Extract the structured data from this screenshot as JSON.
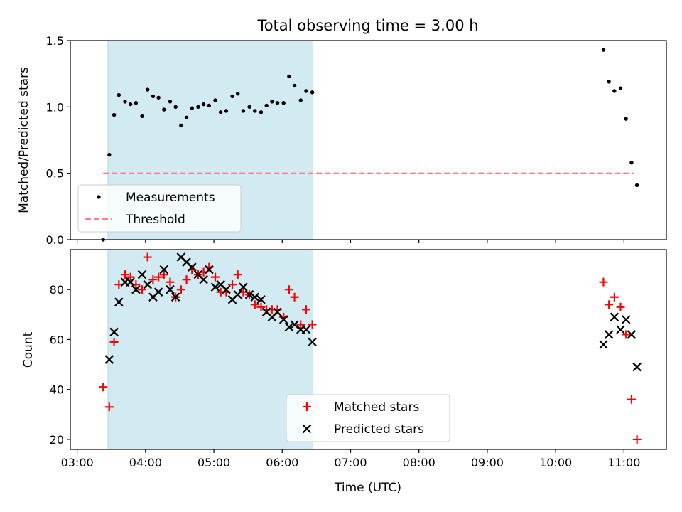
{
  "chart_data": {
    "title": "Total observing time = 3.00 h",
    "xlabel": "Time (UTC)",
    "x_unit": "hours UTC",
    "xlim": [
      2.9,
      11.62
    ],
    "x_ticks": [
      {
        "value": 3,
        "label": "03:00"
      },
      {
        "value": 4,
        "label": "04:00"
      },
      {
        "value": 5,
        "label": "05:00"
      },
      {
        "value": 6,
        "label": "06:00"
      },
      {
        "value": 7,
        "label": "07:00"
      },
      {
        "value": 8,
        "label": "08:00"
      },
      {
        "value": 9,
        "label": "09:00"
      },
      {
        "value": 10,
        "label": "10:00"
      },
      {
        "value": 11,
        "label": "11:00"
      }
    ],
    "shaded_interval": {
      "start": 3.45,
      "end": 6.45,
      "color": "#add8e6"
    },
    "panels": [
      {
        "id": "ratio",
        "type": "scatter",
        "ylabel": "Matched/Predicted stars",
        "ylim": [
          0,
          1.5
        ],
        "y_ticks": [
          {
            "value": 0.0,
            "label": "0.0"
          },
          {
            "value": 0.5,
            "label": "0.5"
          },
          {
            "value": 1.0,
            "label": "1.0"
          },
          {
            "value": 1.5,
            "label": "1.5"
          }
        ],
        "legend_position": "lower-left",
        "series": [
          {
            "name": "Measurements",
            "marker": "dot",
            "color": "#000000",
            "points": [
              [
                3.38,
                0.0
              ],
              [
                3.47,
                0.64
              ],
              [
                3.54,
                0.94
              ],
              [
                3.61,
                1.09
              ],
              [
                3.7,
                1.04
              ],
              [
                3.78,
                1.02
              ],
              [
                3.86,
                1.03
              ],
              [
                3.95,
                0.93
              ],
              [
                4.03,
                1.13
              ],
              [
                4.11,
                1.08
              ],
              [
                4.19,
                1.07
              ],
              [
                4.27,
                0.98
              ],
              [
                4.36,
                1.04
              ],
              [
                4.44,
                1.0
              ],
              [
                4.52,
                0.86
              ],
              [
                4.6,
                0.92
              ],
              [
                4.68,
                0.99
              ],
              [
                4.77,
                1.0
              ],
              [
                4.85,
                1.02
              ],
              [
                4.93,
                1.01
              ],
              [
                5.02,
                1.05
              ],
              [
                5.1,
                0.96
              ],
              [
                5.18,
                0.97
              ],
              [
                5.27,
                1.08
              ],
              [
                5.35,
                1.1
              ],
              [
                5.43,
                0.97
              ],
              [
                5.52,
                1.0
              ],
              [
                5.6,
                0.97
              ],
              [
                5.69,
                0.96
              ],
              [
                5.77,
                1.01
              ],
              [
                5.85,
                1.04
              ],
              [
                5.93,
                1.03
              ],
              [
                6.02,
                1.03
              ],
              [
                6.1,
                1.23
              ],
              [
                6.18,
                1.16
              ],
              [
                6.27,
                1.05
              ],
              [
                6.35,
                1.12
              ],
              [
                6.44,
                1.11
              ],
              [
                10.7,
                1.43
              ],
              [
                10.78,
                1.19
              ],
              [
                10.86,
                1.12
              ],
              [
                10.95,
                1.14
              ],
              [
                11.03,
                0.91
              ],
              [
                11.11,
                0.58
              ],
              [
                11.19,
                0.41
              ]
            ]
          },
          {
            "name": "Threshold",
            "marker": "dashed-line",
            "color": "#ff7f7f",
            "value": 0.5,
            "x_range": [
              3.38,
              11.15
            ]
          }
        ]
      },
      {
        "id": "count",
        "type": "scatter",
        "ylabel": "Count",
        "ylim": [
          16,
          96
        ],
        "y_ticks": [
          {
            "value": 20,
            "label": "20"
          },
          {
            "value": 40,
            "label": "40"
          },
          {
            "value": 60,
            "label": "60"
          },
          {
            "value": 80,
            "label": "80"
          }
        ],
        "legend_position": "lower-center",
        "series": [
          {
            "name": "Matched stars",
            "marker": "plus",
            "color": "#ff0000",
            "points": [
              [
                3.38,
                41
              ],
              [
                3.47,
                33
              ],
              [
                3.54,
                59
              ],
              [
                3.61,
                82
              ],
              [
                3.7,
                86
              ],
              [
                3.78,
                85
              ],
              [
                3.86,
                82
              ],
              [
                3.95,
                80
              ],
              [
                4.03,
                93
              ],
              [
                4.11,
                84
              ],
              [
                4.19,
                85
              ],
              [
                4.27,
                86
              ],
              [
                4.36,
                83
              ],
              [
                4.44,
                77
              ],
              [
                4.52,
                80
              ],
              [
                4.6,
                84
              ],
              [
                4.68,
                88
              ],
              [
                4.77,
                86
              ],
              [
                4.85,
                87
              ],
              [
                4.93,
                89
              ],
              [
                5.02,
                85
              ],
              [
                5.1,
                79
              ],
              [
                5.18,
                79
              ],
              [
                5.27,
                82
              ],
              [
                5.35,
                86
              ],
              [
                5.43,
                79
              ],
              [
                5.52,
                78
              ],
              [
                5.6,
                74
              ],
              [
                5.69,
                73
              ],
              [
                5.77,
                72
              ],
              [
                5.85,
                72
              ],
              [
                5.93,
                72
              ],
              [
                6.02,
                69
              ],
              [
                6.1,
                80
              ],
              [
                6.18,
                77
              ],
              [
                6.27,
                66
              ],
              [
                6.35,
                72
              ],
              [
                6.44,
                66
              ],
              [
                10.7,
                83
              ],
              [
                10.78,
                74
              ],
              [
                10.86,
                77
              ],
              [
                10.95,
                73
              ],
              [
                11.03,
                62
              ],
              [
                11.11,
                36
              ],
              [
                11.19,
                20
              ]
            ]
          },
          {
            "name": "Predicted stars",
            "marker": "x",
            "color": "#000000",
            "points": [
              [
                3.47,
                52
              ],
              [
                3.54,
                63
              ],
              [
                3.61,
                75
              ],
              [
                3.7,
                83
              ],
              [
                3.78,
                83
              ],
              [
                3.86,
                80
              ],
              [
                3.95,
                86
              ],
              [
                4.03,
                82
              ],
              [
                4.11,
                77
              ],
              [
                4.19,
                79
              ],
              [
                4.27,
                88
              ],
              [
                4.36,
                80
              ],
              [
                4.44,
                77
              ],
              [
                4.52,
                93
              ],
              [
                4.6,
                91
              ],
              [
                4.68,
                89
              ],
              [
                4.77,
                86
              ],
              [
                4.85,
                84
              ],
              [
                4.93,
                88
              ],
              [
                5.02,
                81
              ],
              [
                5.1,
                82
              ],
              [
                5.18,
                80
              ],
              [
                5.27,
                76
              ],
              [
                5.35,
                78
              ],
              [
                5.43,
                81
              ],
              [
                5.52,
                78
              ],
              [
                5.6,
                77
              ],
              [
                5.69,
                76
              ],
              [
                5.77,
                71
              ],
              [
                5.85,
                69
              ],
              [
                5.93,
                71
              ],
              [
                6.02,
                68
              ],
              [
                6.1,
                65
              ],
              [
                6.18,
                66
              ],
              [
                6.27,
                64
              ],
              [
                6.35,
                64
              ],
              [
                6.44,
                59
              ],
              [
                10.7,
                58
              ],
              [
                10.78,
                62
              ],
              [
                10.86,
                69
              ],
              [
                10.95,
                64
              ],
              [
                11.03,
                68
              ],
              [
                11.11,
                62
              ],
              [
                11.19,
                49
              ]
            ]
          }
        ]
      }
    ]
  }
}
